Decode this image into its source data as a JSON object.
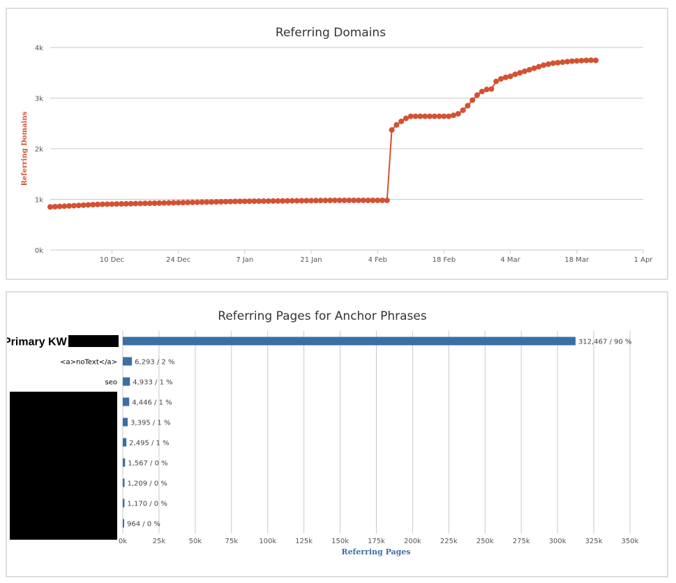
{
  "chart_data": [
    {
      "type": "line",
      "title": "Referring Domains",
      "ylabel": "Referring Domains",
      "xlabel": "",
      "color": "#d35132",
      "ylim": [
        0,
        4000
      ],
      "yticks": [
        0,
        1000,
        2000,
        3000,
        4000
      ],
      "ytick_labels": [
        "0k",
        "1k",
        "2k",
        "3k",
        "4k"
      ],
      "xlim": [
        "2018-11-27",
        "2019-04-01"
      ],
      "xticks": [
        "2018-12-10",
        "2018-12-24",
        "2019-01-07",
        "2019-01-21",
        "2019-02-04",
        "2019-02-18",
        "2019-03-04",
        "2019-03-18",
        "2019-04-01"
      ],
      "xtick_labels": [
        "10 Dec",
        "24 Dec",
        "7 Jan",
        "21 Jan",
        "4 Feb",
        "18 Feb",
        "4 Mar",
        "18 Mar",
        "1 Apr"
      ],
      "grid": true,
      "series": [
        {
          "x": [
            "2018-11-27",
            "2018-11-28",
            "2018-11-29",
            "2018-11-30",
            "2018-12-01",
            "2018-12-02",
            "2018-12-03",
            "2018-12-04",
            "2018-12-05",
            "2018-12-06",
            "2018-12-07",
            "2018-12-08",
            "2018-12-09",
            "2018-12-10",
            "2018-12-11",
            "2018-12-12",
            "2018-12-13",
            "2018-12-14",
            "2018-12-15",
            "2018-12-16",
            "2018-12-17",
            "2018-12-18",
            "2018-12-19",
            "2018-12-20",
            "2018-12-21",
            "2018-12-22",
            "2018-12-23",
            "2018-12-24",
            "2018-12-25",
            "2018-12-26",
            "2018-12-27",
            "2018-12-28",
            "2018-12-29",
            "2018-12-30",
            "2018-12-31",
            "2019-01-01",
            "2019-01-02",
            "2019-01-03",
            "2019-01-04",
            "2019-01-05",
            "2019-01-06",
            "2019-01-07",
            "2019-01-08",
            "2019-01-09",
            "2019-01-10",
            "2019-01-11",
            "2019-01-12",
            "2019-01-13",
            "2019-01-14",
            "2019-01-15",
            "2019-01-16",
            "2019-01-17",
            "2019-01-18",
            "2019-01-19",
            "2019-01-20",
            "2019-01-21",
            "2019-01-22",
            "2019-01-23",
            "2019-01-24",
            "2019-01-25",
            "2019-01-26",
            "2019-01-27",
            "2019-01-28",
            "2019-01-29",
            "2019-01-30",
            "2019-01-31",
            "2019-02-01",
            "2019-02-02",
            "2019-02-03",
            "2019-02-04",
            "2019-02-05",
            "2019-02-06",
            "2019-02-07",
            "2019-02-08",
            "2019-02-09",
            "2019-02-10",
            "2019-02-11",
            "2019-02-12",
            "2019-02-13",
            "2019-02-14",
            "2019-02-15",
            "2019-02-16",
            "2019-02-17",
            "2019-02-18",
            "2019-02-19",
            "2019-02-20",
            "2019-02-21",
            "2019-02-22",
            "2019-02-23",
            "2019-02-24",
            "2019-02-25",
            "2019-02-26",
            "2019-02-27",
            "2019-02-28",
            "2019-03-01",
            "2019-03-02",
            "2019-03-03",
            "2019-03-04",
            "2019-03-05",
            "2019-03-06",
            "2019-03-07",
            "2019-03-08",
            "2019-03-09",
            "2019-03-10",
            "2019-03-11",
            "2019-03-12",
            "2019-03-13",
            "2019-03-14",
            "2019-03-15",
            "2019-03-16",
            "2019-03-17",
            "2019-03-18",
            "2019-03-19",
            "2019-03-20",
            "2019-03-21",
            "2019-03-22"
          ],
          "y": [
            850,
            855,
            860,
            865,
            870,
            875,
            880,
            885,
            890,
            895,
            900,
            902,
            904,
            906,
            908,
            910,
            912,
            914,
            916,
            918,
            920,
            922,
            924,
            926,
            928,
            930,
            932,
            934,
            936,
            938,
            940,
            942,
            944,
            946,
            948,
            950,
            952,
            954,
            956,
            958,
            960,
            961,
            962,
            963,
            964,
            965,
            966,
            967,
            968,
            969,
            970,
            971,
            972,
            973,
            974,
            975,
            976,
            977,
            978,
            979,
            980,
            980,
            980,
            980,
            980,
            980,
            980,
            980,
            980,
            980,
            980,
            980,
            2370,
            2470,
            2540,
            2600,
            2640,
            2640,
            2640,
            2640,
            2640,
            2640,
            2640,
            2640,
            2640,
            2660,
            2690,
            2760,
            2850,
            2960,
            3060,
            3130,
            3170,
            3180,
            3330,
            3380,
            3410,
            3430,
            3470,
            3500,
            3530,
            3560,
            3590,
            3620,
            3650,
            3670,
            3690,
            3700,
            3710,
            3720,
            3730,
            3735,
            3740,
            3745,
            3748,
            3745
          ]
        }
      ]
    },
    {
      "type": "bar",
      "orientation": "horizontal",
      "title": "Referring Pages for Anchor Phrases",
      "xlabel": "Referring Pages",
      "ylabel": "",
      "color": "#3a6ea5",
      "xlim": [
        0,
        350000
      ],
      "xticks": [
        0,
        25000,
        50000,
        75000,
        100000,
        125000,
        150000,
        175000,
        200000,
        225000,
        250000,
        275000,
        300000,
        325000,
        350000
      ],
      "xtick_labels": [
        "0k",
        "25k",
        "50k",
        "75k",
        "100k",
        "125k",
        "150k",
        "175k",
        "200k",
        "225k",
        "250k",
        "275k",
        "300k",
        "325k",
        "350k"
      ],
      "grid": true,
      "categories": [
        "Primary KW",
        "<a>noText</a>",
        "seo",
        "",
        "",
        "",
        "",
        "",
        "",
        ""
      ],
      "values": [
        312467,
        6293,
        4933,
        4446,
        3395,
        2495,
        1567,
        1209,
        1170,
        964
      ],
      "data_labels": [
        "312,467 / 90 %",
        "6,293 / 2 %",
        "4,933 / 1 %",
        "4,446 / 1 %",
        "3,395 / 1 %",
        "2,495 / 1 %",
        "1,567 / 0 %",
        "1,209 / 0 %",
        "1,170 / 0 %",
        "964 / 0 %"
      ]
    }
  ]
}
